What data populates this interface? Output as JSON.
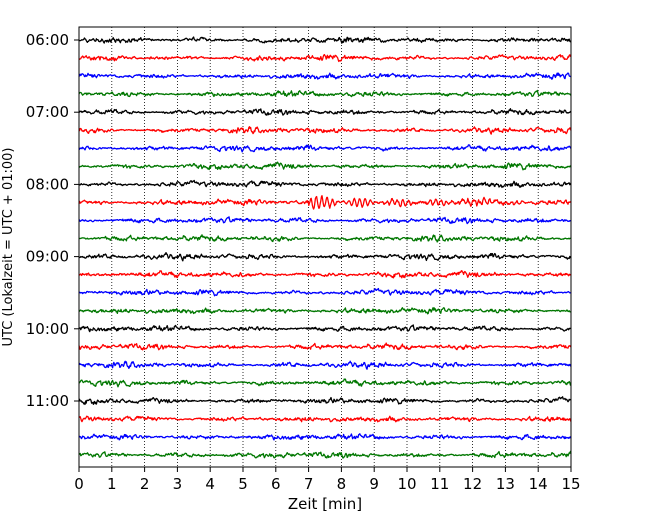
{
  "chart_data": {
    "type": "line",
    "title": "",
    "xlabel": "Zeit  [min]",
    "ylabel": "UTC (Lokalzeit = UTC + 01:00)",
    "xlim": [
      0,
      15
    ],
    "xticks": [
      0,
      1,
      2,
      3,
      4,
      5,
      6,
      7,
      8,
      9,
      10,
      11,
      12,
      13,
      14,
      15
    ],
    "ytick_labels": [
      "06:00",
      "07:00",
      "08:00",
      "09:00",
      "10:00",
      "11:00"
    ],
    "grid": "vertical dotted",
    "trace_interval_min": 15,
    "start_time": "06:00",
    "trace_count": 24,
    "colors": [
      "#000000",
      "#ff0000",
      "#0000ff",
      "#007700"
    ],
    "event": {
      "trace_index": 9,
      "x_min": [
        7.0,
        13.8
      ]
    }
  }
}
